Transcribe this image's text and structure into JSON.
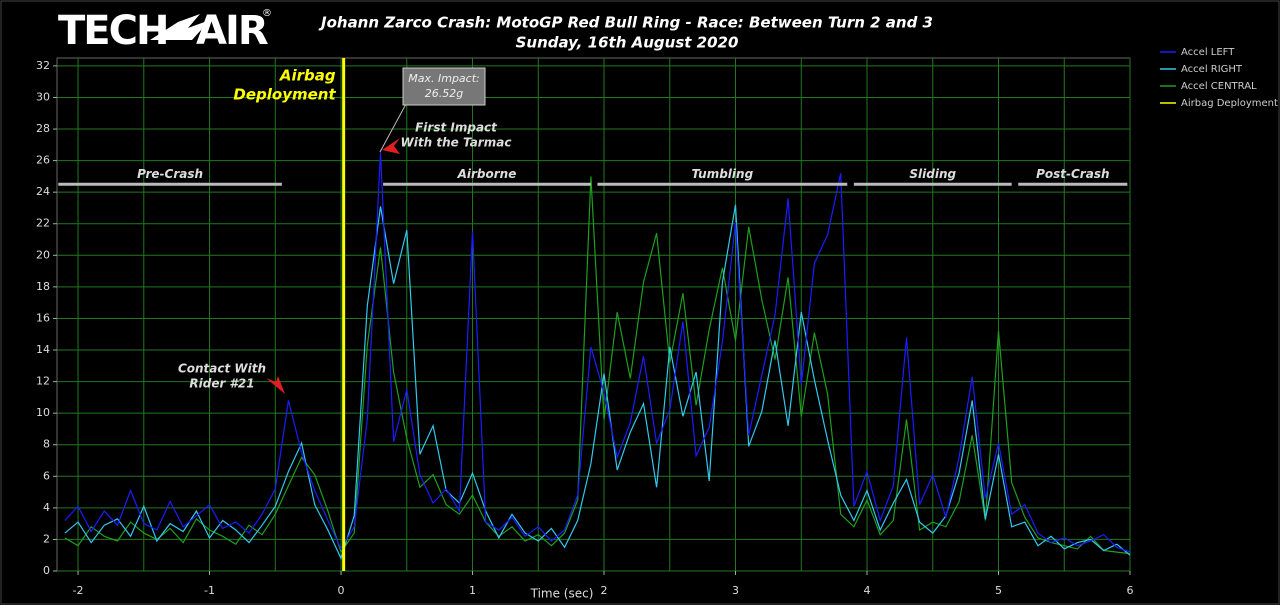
{
  "chart_data": {
    "type": "line",
    "logo": [
      "TECH",
      "AIR",
      "®"
    ],
    "title": "Johann Zarco Crash: MotoGP Red Bull Ring - Race: Between Turn 2 and 3",
    "subtitle": "Sunday, 16th August 2020",
    "x_label": "Time (sec)",
    "x": [
      -2.1,
      -2.0,
      -1.9,
      -1.8,
      -1.7,
      -1.6,
      -1.5,
      -1.4,
      -1.3,
      -1.2,
      -1.1,
      -1.0,
      -0.9,
      -0.8,
      -0.7,
      -0.6,
      -0.5,
      -0.4,
      -0.3,
      -0.2,
      -0.1,
      0,
      0.1,
      0.2,
      0.3,
      0.4,
      0.5,
      0.6,
      0.7,
      0.8,
      0.9,
      1.0,
      1.1,
      1.2,
      1.3,
      1.4,
      1.5,
      1.6,
      1.7,
      1.8,
      1.9,
      2.0,
      2.1,
      2.2,
      2.3,
      2.4,
      2.5,
      2.6,
      2.7,
      2.8,
      2.9,
      3.0,
      3.1,
      3.2,
      3.3,
      3.4,
      3.5,
      3.6,
      3.7,
      3.8,
      3.9,
      4.0,
      4.1,
      4.2,
      4.3,
      4.4,
      4.5,
      4.6,
      4.7,
      4.8,
      4.9,
      5.0,
      5.1,
      5.2,
      5.3,
      5.4,
      5.5,
      5.6,
      5.7,
      5.8,
      5.9,
      6.0
    ],
    "series": [
      {
        "name": "Accel LEFT",
        "color": "#1c1cff",
        "values": [
          3.2,
          4.1,
          2.5,
          3.8,
          2.9,
          5.1,
          3.0,
          2.6,
          4.4,
          2.8,
          3.5,
          4.2,
          2.7,
          3.1,
          2.4,
          3.6,
          5.2,
          10.8,
          7.5,
          5.1,
          3.2,
          1.4,
          2.8,
          9.6,
          26.52,
          8.2,
          11.5,
          6.1,
          4.3,
          5.2,
          3.8,
          21.5,
          3.1,
          2.6,
          3.4,
          2.2,
          2.8,
          1.9,
          2.6,
          4.8,
          14.2,
          11.3,
          7.2,
          9.4,
          13.6,
          8.1,
          10.2,
          15.8,
          7.3,
          9.1,
          14.5,
          22.1,
          8.6,
          12.4,
          16.2,
          23.6,
          11.8,
          19.5,
          21.3,
          25.2,
          4.1,
          6.3,
          3.2,
          5.4,
          14.8,
          4.2,
          6.1,
          3.4,
          7.2,
          12.3,
          4.6,
          8.1,
          3.6,
          4.2,
          2.4,
          1.8,
          2.1,
          1.6,
          1.9,
          2.3,
          1.5,
          1.2
        ]
      },
      {
        "name": "Accel RIGHT",
        "color": "#33c8ee",
        "values": [
          2.4,
          3.1,
          1.8,
          2.9,
          3.3,
          2.2,
          4.1,
          1.9,
          3.0,
          2.5,
          3.8,
          2.1,
          3.2,
          2.6,
          1.8,
          2.9,
          4.1,
          6.3,
          8.1,
          4.2,
          2.6,
          0.8,
          3.5,
          16.8,
          23.1,
          18.2,
          21.6,
          7.4,
          9.2,
          5.1,
          4.3,
          6.2,
          3.8,
          2.1,
          3.6,
          2.4,
          1.9,
          2.7,
          1.5,
          3.2,
          6.8,
          12.5,
          6.4,
          8.8,
          10.6,
          5.3,
          14.2,
          9.8,
          12.6,
          5.7,
          18.3,
          23.2,
          7.9,
          10.1,
          14.6,
          9.2,
          16.4,
          12.1,
          8.3,
          4.8,
          3.2,
          5.1,
          2.6,
          4.3,
          5.8,
          3.1,
          2.4,
          3.5,
          6.2,
          10.8,
          3.3,
          7.4,
          2.8,
          3.1,
          1.6,
          2.2,
          1.4,
          1.8,
          2.0,
          1.3,
          1.7,
          1.0
        ]
      },
      {
        "name": "Accel CENTRAL",
        "color": "#1f9e1f",
        "values": [
          2.1,
          1.6,
          2.8,
          2.2,
          1.9,
          3.1,
          2.4,
          2.0,
          2.7,
          1.8,
          3.3,
          2.6,
          2.2,
          1.7,
          2.9,
          2.3,
          3.6,
          5.4,
          7.2,
          6.1,
          3.8,
          1.2,
          2.4,
          14.3,
          20.5,
          12.6,
          8.4,
          5.3,
          6.1,
          4.2,
          3.6,
          4.8,
          3.1,
          2.2,
          2.8,
          1.9,
          2.3,
          1.6,
          2.4,
          4.5,
          25.0,
          9.6,
          16.4,
          12.2,
          18.3,
          21.4,
          13.2,
          17.6,
          10.5,
          15.3,
          19.2,
          14.6,
          21.8,
          17.2,
          13.4,
          18.6,
          9.8,
          15.1,
          11.2,
          3.6,
          2.8,
          4.5,
          2.3,
          3.2,
          9.6,
          2.6,
          3.1,
          2.8,
          4.4,
          8.6,
          3.2,
          15.2,
          5.6,
          3.4,
          2.1,
          1.8,
          1.6,
          1.4,
          2.2,
          1.3,
          1.2,
          1.1
        ]
      }
    ],
    "deployment": {
      "name": "Airbag Deployment",
      "color": "#ffff00",
      "x": 0.02,
      "label": [
        "Airbag",
        "Deployment"
      ]
    },
    "phases": [
      {
        "label": "Pre-Crash",
        "x": [
          -2.15,
          -0.45
        ]
      },
      {
        "label": "Airborne",
        "x": [
          0.32,
          1.9
        ]
      },
      {
        "label": "Tumbling",
        "x": [
          1.95,
          3.85
        ]
      },
      {
        "label": "Sliding",
        "x": [
          3.9,
          5.1
        ]
      },
      {
        "label": "Post-Crash",
        "x": [
          5.15,
          5.98
        ]
      }
    ],
    "callouts": {
      "max_impact": [
        "Max. Impact:",
        "26.52g"
      ],
      "first_impact": [
        "First Impact",
        "With the Tarmac"
      ],
      "contact": [
        "Contact With",
        "Rider #21"
      ]
    },
    "xlim": [
      -2.16,
      6.0
    ],
    "xticks": [
      -2,
      -1,
      0,
      1,
      2,
      3,
      4,
      5,
      6
    ],
    "xgrid": [
      -2,
      -1.5,
      -1,
      -0.5,
      0,
      0.5,
      1,
      1.5,
      2,
      2.5,
      3,
      3.5,
      4,
      4.5,
      5,
      5.5,
      6
    ],
    "ylim": [
      0,
      32.5
    ],
    "yticks": [
      0,
      2,
      4,
      6,
      8,
      10,
      12,
      14,
      16,
      18,
      20,
      22,
      24,
      26,
      28,
      30,
      32
    ],
    "grid": true
  }
}
